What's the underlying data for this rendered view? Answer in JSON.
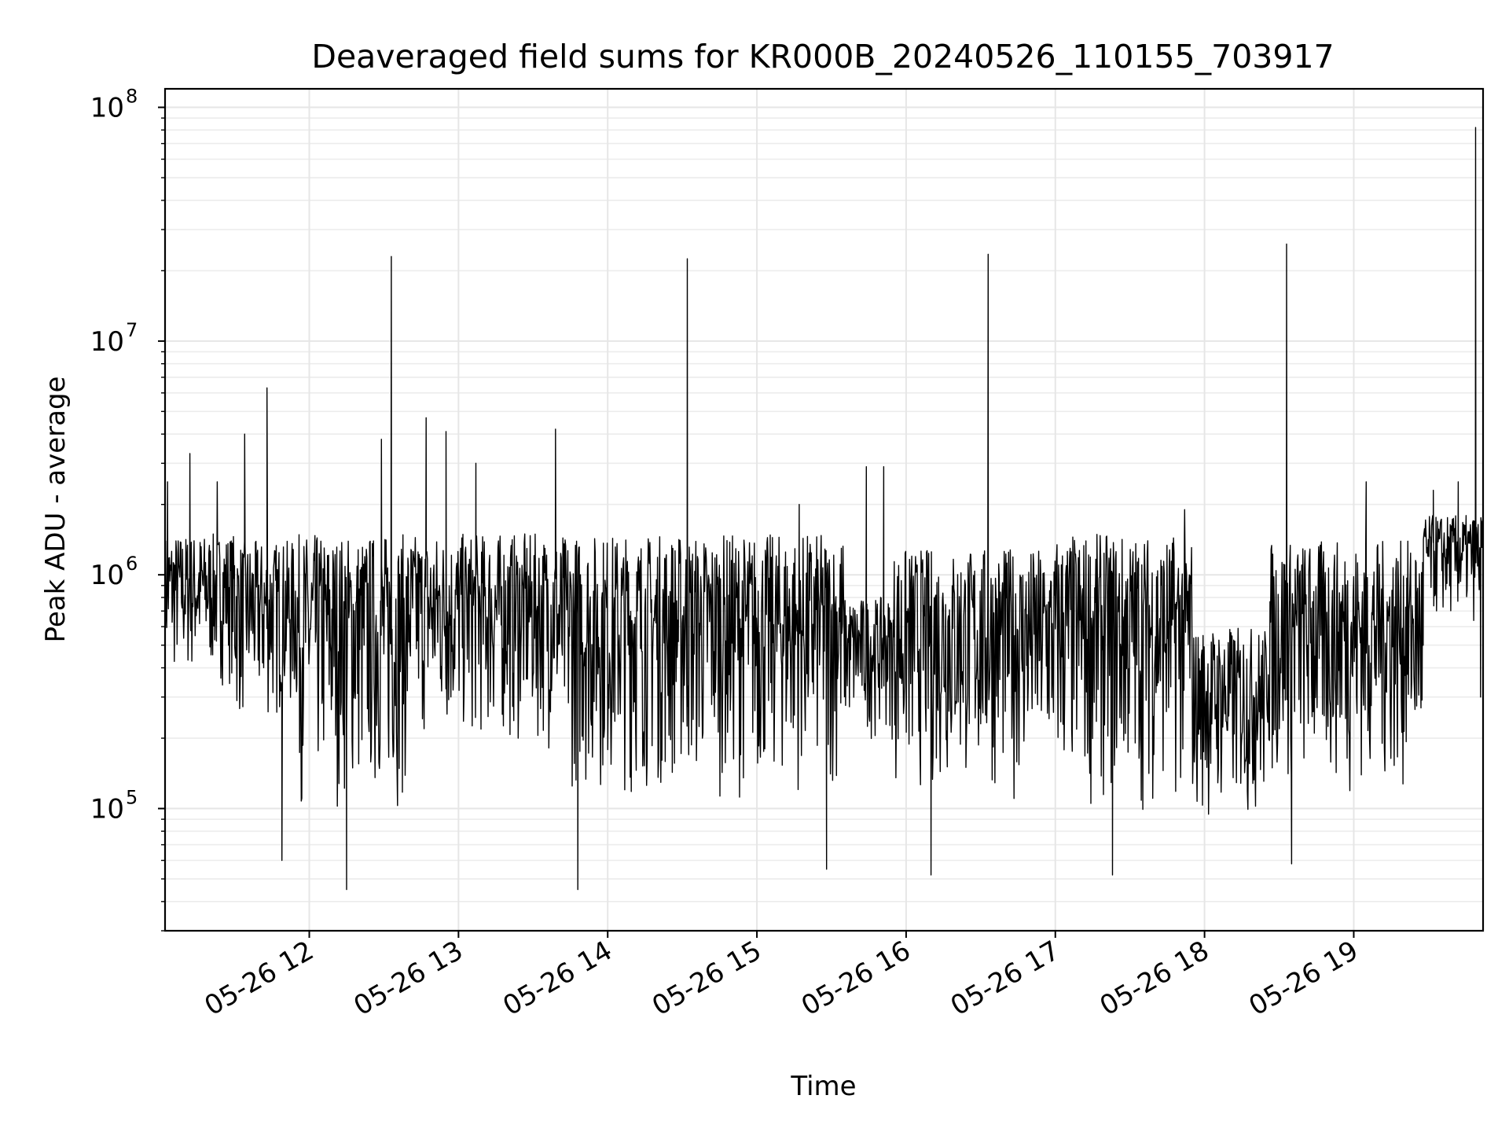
{
  "chart_data": {
    "type": "line",
    "title": "Deaveraged field sums for KR000B_20240526_110155_703917",
    "xlabel": "Time",
    "ylabel": "Peak ADU - average",
    "y_scale": "log",
    "ylim": [
      30000,
      120000000
    ],
    "xlim": [
      "2024-05-26 11:02",
      "2024-05-26 19:52"
    ],
    "grid": true,
    "legend": "none",
    "line_color": "#000000",
    "x_ticks": [
      {
        "value": "2024-05-26 12:00",
        "label": "05-26 12"
      },
      {
        "value": "2024-05-26 13:00",
        "label": "05-26 13"
      },
      {
        "value": "2024-05-26 14:00",
        "label": "05-26 14"
      },
      {
        "value": "2024-05-26 15:00",
        "label": "05-26 15"
      },
      {
        "value": "2024-05-26 16:00",
        "label": "05-26 16"
      },
      {
        "value": "2024-05-26 17:00",
        "label": "05-26 17"
      },
      {
        "value": "2024-05-26 18:00",
        "label": "05-26 18"
      },
      {
        "value": "2024-05-26 19:00",
        "label": "05-26 19"
      }
    ],
    "y_ticks": [
      {
        "value": 100000,
        "base": "10",
        "exp": "5"
      },
      {
        "value": 1000000,
        "base": "10",
        "exp": "6"
      },
      {
        "value": 10000000,
        "base": "10",
        "exp": "7"
      },
      {
        "value": 100000000,
        "base": "10",
        "exp": "8"
      }
    ],
    "series": [
      {
        "baseline_segments": [
          {
            "start": "2024-05-26 11:02",
            "end": "2024-05-26 11:30",
            "high": 1500000,
            "low": 250000
          },
          {
            "start": "2024-05-26 11:30",
            "end": "2024-05-26 11:55",
            "high": 1400000,
            "low": 150000
          },
          {
            "start": "2024-05-26 11:55",
            "end": "2024-05-26 12:40",
            "high": 1500000,
            "low": 60000
          },
          {
            "start": "2024-05-26 12:40",
            "end": "2024-05-26 13:40",
            "high": 1500000,
            "low": 120000
          },
          {
            "start": "2024-05-26 13:40",
            "end": "2024-05-26 15:35",
            "high": 1500000,
            "low": 70000
          },
          {
            "start": "2024-05-26 15:35",
            "end": "2024-05-26 15:55",
            "high": 800000,
            "low": 150000
          },
          {
            "start": "2024-05-26 15:55",
            "end": "2024-05-26 17:00",
            "high": 1300000,
            "low": 70000
          },
          {
            "start": "2024-05-26 17:00",
            "end": "2024-05-26 17:55",
            "high": 1500000,
            "low": 60000
          },
          {
            "start": "2024-05-26 17:55",
            "end": "2024-05-26 18:25",
            "high": 600000,
            "low": 60000
          },
          {
            "start": "2024-05-26 18:25",
            "end": "2024-05-26 19:28",
            "high": 1400000,
            "low": 70000
          },
          {
            "start": "2024-05-26 19:28",
            "end": "2024-05-26 19:52",
            "high": 1800000,
            "low": 500000
          }
        ],
        "peaks": [
          {
            "x": "2024-05-26 11:03",
            "y": 2500000
          },
          {
            "x": "2024-05-26 11:12",
            "y": 3300000
          },
          {
            "x": "2024-05-26 11:23",
            "y": 2500000
          },
          {
            "x": "2024-05-26 11:34",
            "y": 4000000
          },
          {
            "x": "2024-05-26 11:43",
            "y": 6300000
          },
          {
            "x": "2024-05-26 11:49",
            "y": 60000
          },
          {
            "x": "2024-05-26 12:15",
            "y": 45000
          },
          {
            "x": "2024-05-26 12:29",
            "y": 3800000
          },
          {
            "x": "2024-05-26 12:33",
            "y": 23000000
          },
          {
            "x": "2024-05-26 12:47",
            "y": 4700000
          },
          {
            "x": "2024-05-26 12:55",
            "y": 4100000
          },
          {
            "x": "2024-05-26 13:07",
            "y": 3000000
          },
          {
            "x": "2024-05-26 13:39",
            "y": 4200000
          },
          {
            "x": "2024-05-26 13:48",
            "y": 45000
          },
          {
            "x": "2024-05-26 14:32",
            "y": 22500000
          },
          {
            "x": "2024-05-26 15:17",
            "y": 2000000
          },
          {
            "x": "2024-05-26 15:28",
            "y": 55000
          },
          {
            "x": "2024-05-26 15:44",
            "y": 2900000
          },
          {
            "x": "2024-05-26 15:51",
            "y": 2900000
          },
          {
            "x": "2024-05-26 16:10",
            "y": 52000
          },
          {
            "x": "2024-05-26 16:33",
            "y": 23500000
          },
          {
            "x": "2024-05-26 17:23",
            "y": 52000
          },
          {
            "x": "2024-05-26 17:52",
            "y": 1900000
          },
          {
            "x": "2024-05-26 18:33",
            "y": 26000000
          },
          {
            "x": "2024-05-26 18:35",
            "y": 58000
          },
          {
            "x": "2024-05-26 19:05",
            "y": 2500000
          },
          {
            "x": "2024-05-26 19:32",
            "y": 2300000
          },
          {
            "x": "2024-05-26 19:42",
            "y": 2500000
          },
          {
            "x": "2024-05-26 19:49",
            "y": 82000000
          },
          {
            "x": "2024-05-26 19:51",
            "y": 300000
          }
        ]
      }
    ]
  }
}
